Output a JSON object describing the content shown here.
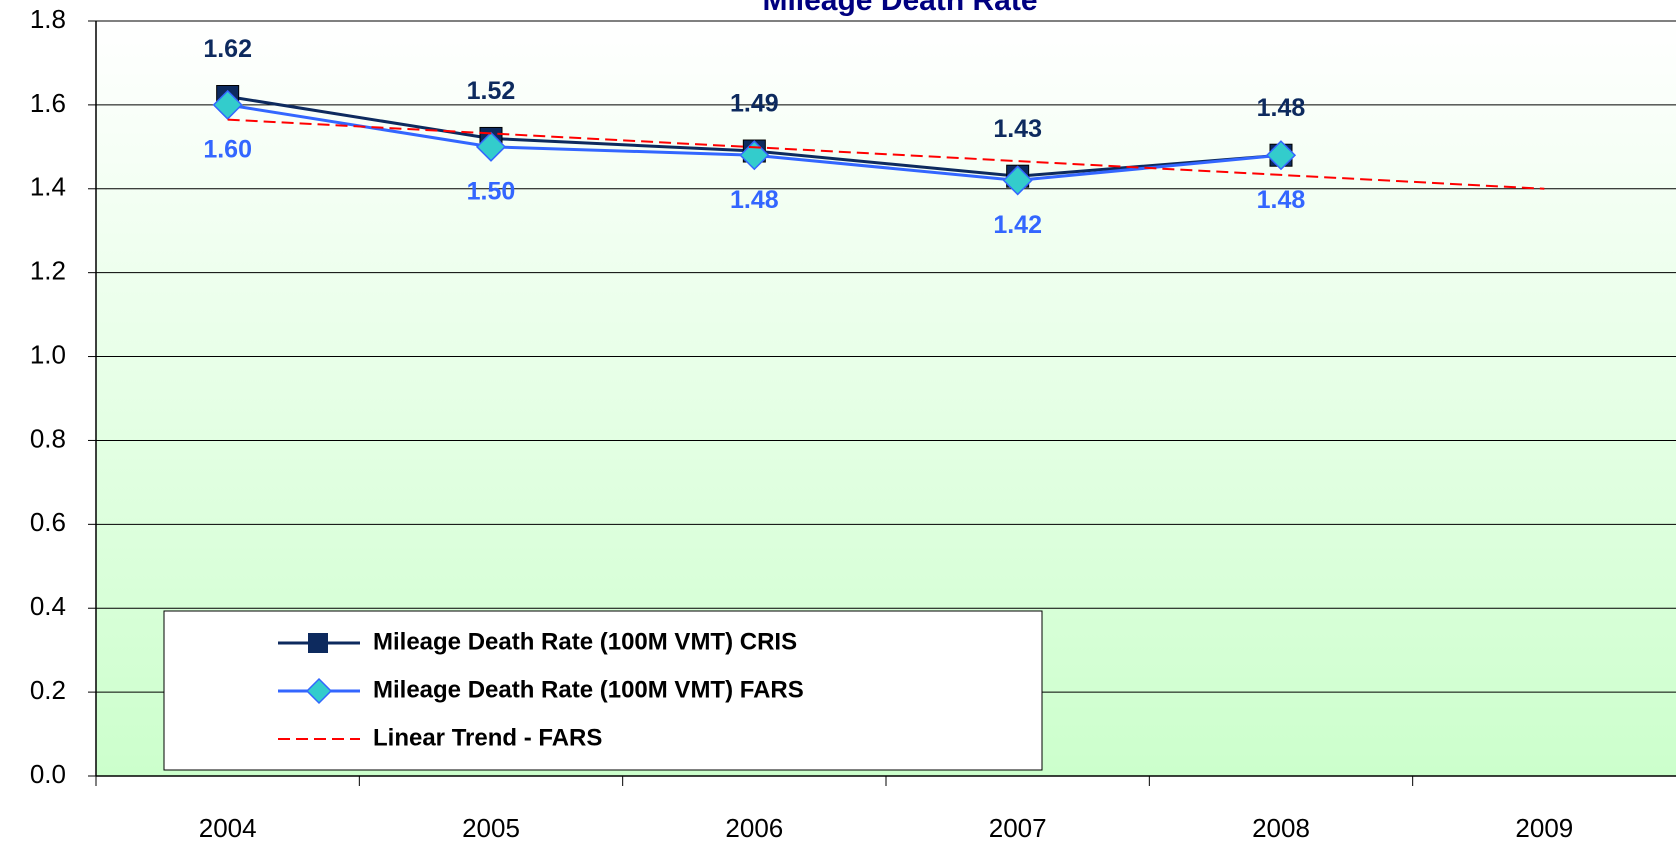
{
  "chart_data": {
    "type": "line",
    "title": "Mileage Death Rate",
    "categories": [
      "2004",
      "2005",
      "2006",
      "2007",
      "2008",
      "2009"
    ],
    "series": [
      {
        "name": "Mileage Death Rate (100M VMT) CRIS",
        "color": "#0d2a5e",
        "marker": "square",
        "values": [
          1.62,
          1.52,
          1.49,
          1.43,
          1.48,
          null
        ],
        "value_labels": [
          "1.62",
          "1.52",
          "1.49",
          "1.43",
          "1.48",
          null
        ]
      },
      {
        "name": "Mileage Death Rate (100M VMT) FARS",
        "color": "#3366ff",
        "marker": "diamond",
        "marker_color": "#33cccc",
        "values": [
          1.6,
          1.5,
          1.48,
          1.42,
          1.48,
          null
        ],
        "value_labels": [
          "1.60",
          "1.50",
          "1.48",
          "1.42",
          "1.48",
          null
        ]
      },
      {
        "name": "Linear Trend - FARS",
        "color": "#ff0000",
        "dashed": true,
        "values": [
          1.565,
          1.532,
          1.499,
          1.466,
          1.433,
          1.4
        ]
      }
    ],
    "ylim": [
      0,
      1.8
    ],
    "yticks": [
      {
        "value": 0,
        "label": "0.0"
      },
      0.2,
      0.4,
      0.6,
      0.8,
      {
        "value": 1,
        "label": "1.0"
      },
      1.2,
      1.4,
      1.6,
      1.8
    ],
    "grid": true,
    "legend": "lower left"
  }
}
